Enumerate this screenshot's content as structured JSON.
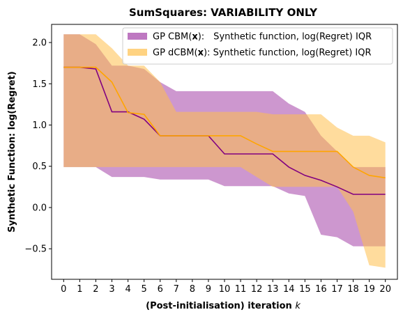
{
  "chart_data": {
    "type": "area",
    "title": "SumSquares: VARIABILITY ONLY",
    "xlabel": "(Post-initialisation) iteration",
    "xlabel_var": "k",
    "ylabel": "Synthetic Function: log(Regret)",
    "xlim": [
      -0.75,
      20.75
    ],
    "ylim": [
      -0.87,
      2.22
    ],
    "x": [
      0,
      1,
      2,
      3,
      4,
      5,
      6,
      7,
      8,
      9,
      10,
      11,
      12,
      13,
      14,
      15,
      16,
      17,
      18,
      19,
      20
    ],
    "xticks": [
      "0",
      "1",
      "2",
      "3",
      "4",
      "5",
      "6",
      "7",
      "8",
      "9",
      "10",
      "11",
      "12",
      "13",
      "14",
      "15",
      "16",
      "17",
      "18",
      "19",
      "20"
    ],
    "yticks": [
      {
        "value": -0.5,
        "label": "−0.5"
      },
      {
        "value": 0.0,
        "label": "0.0"
      },
      {
        "value": 0.5,
        "label": "0.5"
      },
      {
        "value": 1.0,
        "label": "1.0"
      },
      {
        "value": 1.5,
        "label": "1.5"
      },
      {
        "value": 2.0,
        "label": "2.0"
      }
    ],
    "legend_position": "top-right",
    "series": [
      {
        "name_prefix": "GP CBM(",
        "name_bold": "x",
        "name_suffix": "):  Synthetic function, log(Regret) IQR",
        "line_color": "#800080",
        "band_color": "#9b30a0",
        "band_opacity": 0.5,
        "median": [
          1.7,
          1.7,
          1.68,
          1.16,
          1.16,
          1.07,
          0.87,
          0.87,
          0.87,
          0.87,
          0.65,
          0.65,
          0.65,
          0.65,
          0.49,
          0.39,
          0.33,
          0.25,
          0.16,
          0.16,
          0.16
        ],
        "upper": [
          2.1,
          2.1,
          1.98,
          1.72,
          1.72,
          1.68,
          1.52,
          1.41,
          1.41,
          1.41,
          1.41,
          1.41,
          1.41,
          1.41,
          1.26,
          1.16,
          0.87,
          0.68,
          0.49,
          0.49,
          0.49
        ],
        "lower": [
          0.49,
          0.49,
          0.49,
          0.37,
          0.37,
          0.37,
          0.34,
          0.34,
          0.34,
          0.34,
          0.26,
          0.26,
          0.26,
          0.26,
          0.17,
          0.14,
          -0.33,
          -0.36,
          -0.47,
          -0.47,
          -0.47
        ]
      },
      {
        "name_prefix": "GP dCBM(",
        "name_bold": "x",
        "name_suffix": "): Synthetic function, log(Regret) IQR",
        "line_color": "#ffa500",
        "band_color": "#ffc04d",
        "band_opacity": 0.55,
        "median": [
          1.7,
          1.7,
          1.7,
          1.52,
          1.15,
          1.13,
          0.87,
          0.87,
          0.87,
          0.87,
          0.87,
          0.87,
          0.77,
          0.68,
          0.68,
          0.68,
          0.68,
          0.68,
          0.49,
          0.39,
          0.36
        ],
        "upper": [
          2.1,
          2.1,
          2.1,
          1.93,
          1.72,
          1.72,
          1.52,
          1.16,
          1.16,
          1.16,
          1.16,
          1.16,
          1.16,
          1.13,
          1.13,
          1.13,
          1.13,
          0.97,
          0.87,
          0.87,
          0.79
        ],
        "lower": [
          0.49,
          0.49,
          0.49,
          0.49,
          0.49,
          0.49,
          0.49,
          0.49,
          0.49,
          0.49,
          0.49,
          0.49,
          0.37,
          0.25,
          0.25,
          0.25,
          0.25,
          0.25,
          -0.05,
          -0.7,
          -0.73
        ]
      }
    ]
  }
}
